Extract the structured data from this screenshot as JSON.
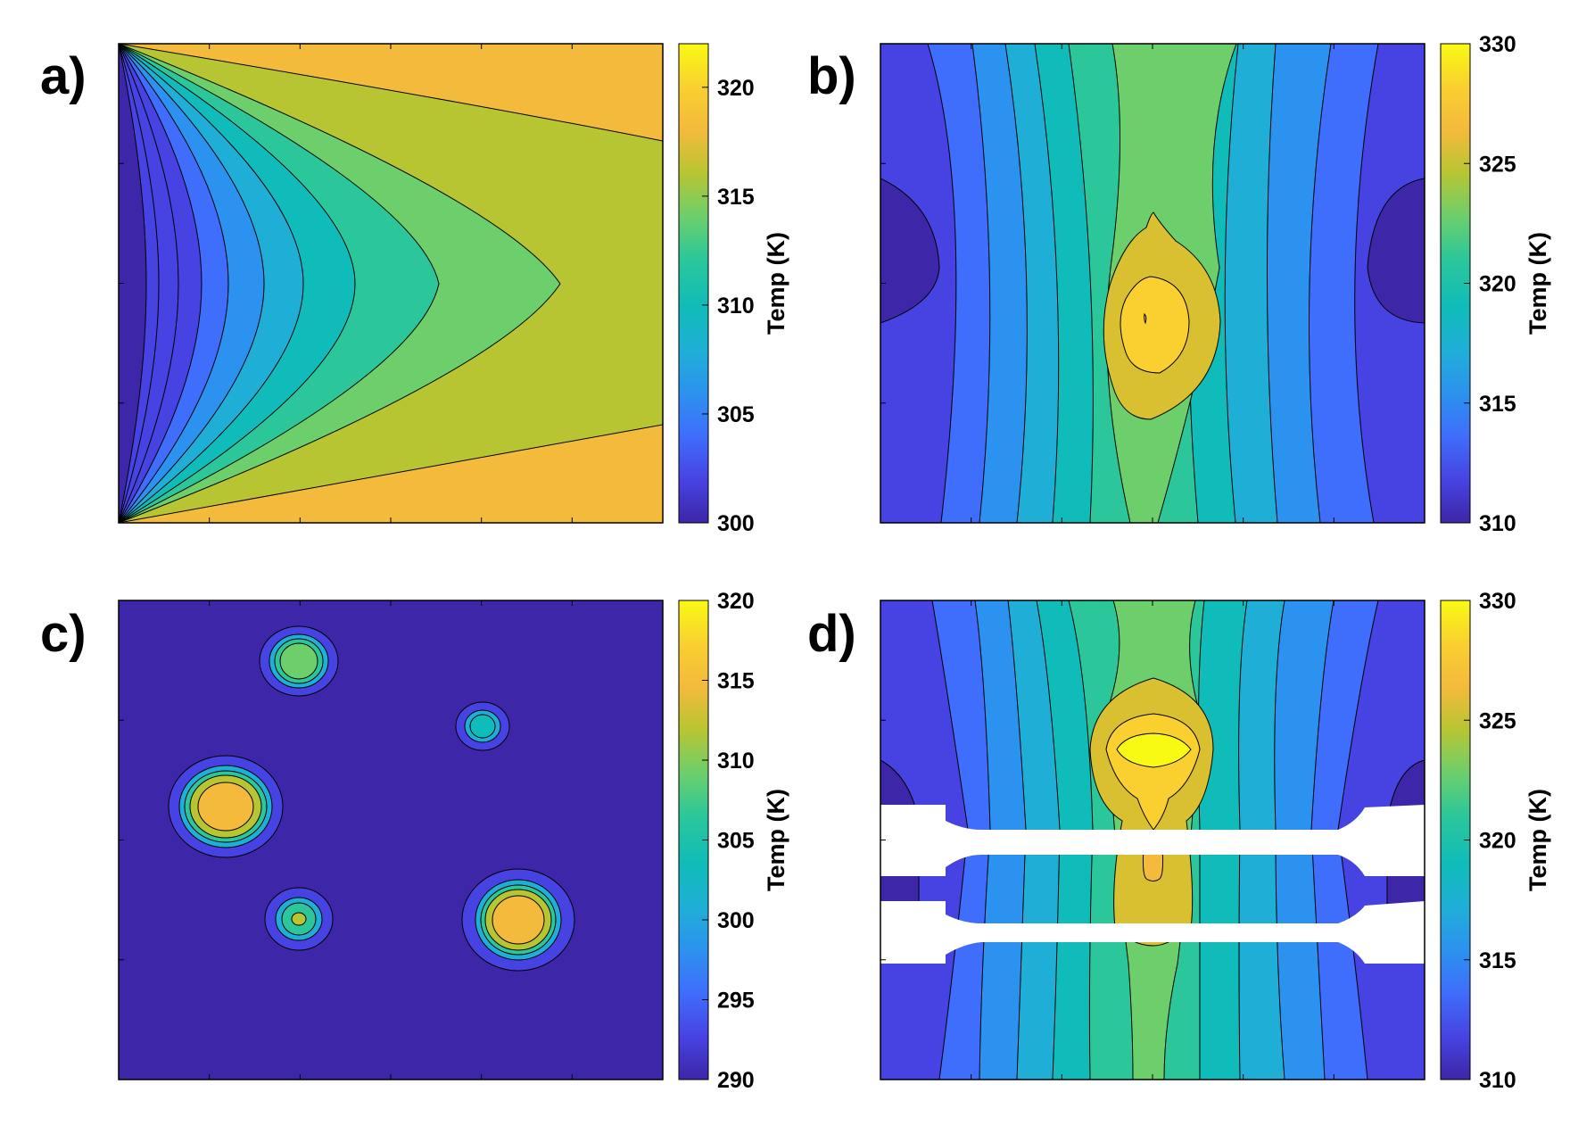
{
  "colors": {
    "parula": [
      "#3d26a8",
      "#4743e3",
      "#3f6dfc",
      "#2c92ef",
      "#1fafd6",
      "#0fbcb9",
      "#2bc79b",
      "#6ccf6b",
      "#b8c532",
      "#f4ba3c",
      "#f9d02f",
      "#f9fa14"
    ]
  },
  "chart_data": [
    {
      "type": "heatmap",
      "panel_label": "a)",
      "title": "",
      "colorbar": {
        "label": "Temp (K)",
        "min": 300,
        "max": 322,
        "ticks": [
          "300",
          "305",
          "310",
          "315",
          "320"
        ]
      },
      "description_of_field": "two converging wedges from left-edge corners; cold at left edge, warm to the right; contour levels every ~2 K",
      "contour_levels": [
        301,
        303,
        305,
        307,
        309,
        311,
        313,
        315,
        317,
        319
      ]
    },
    {
      "type": "heatmap",
      "panel_label": "b)",
      "title": "",
      "colorbar": {
        "label": "Temp (K)",
        "min": 310,
        "max": 330,
        "ticks": [
          "310",
          "315",
          "320",
          "325",
          "330"
        ]
      },
      "hotspot": {
        "center_x_fraction": 0.5,
        "center_y_fraction": 0.57,
        "peak": 327
      },
      "contour_levels": [
        312,
        314,
        316,
        318,
        320,
        322,
        324,
        326
      ]
    },
    {
      "type": "heatmap",
      "panel_label": "c)",
      "title": "",
      "colorbar": {
        "label": "Temp (K)",
        "min": 290,
        "max": 320,
        "ticks": [
          "290",
          "295",
          "300",
          "305",
          "310",
          "315",
          "320"
        ]
      },
      "background_temp": 290.5,
      "hotspots": [
        {
          "x": 0.33,
          "y": 0.13,
          "peak": 310
        },
        {
          "x": 0.67,
          "y": 0.27,
          "peak": 306
        },
        {
          "x": 0.2,
          "y": 0.43,
          "peak": 316
        },
        {
          "x": 0.33,
          "y": 0.68,
          "peak": 307
        },
        {
          "x": 0.73,
          "y": 0.68,
          "peak": 316
        }
      ]
    },
    {
      "type": "heatmap",
      "panel_label": "d)",
      "title": "",
      "colorbar": {
        "label": "Temp (K)",
        "min": 310,
        "max": 330,
        "ticks": [
          "310",
          "315",
          "320",
          "325",
          "330"
        ]
      },
      "hotspot": {
        "center_x_fraction": 0.5,
        "center_y_fraction": 0.31,
        "peak": 330
      },
      "masked_bands": 2
    }
  ]
}
